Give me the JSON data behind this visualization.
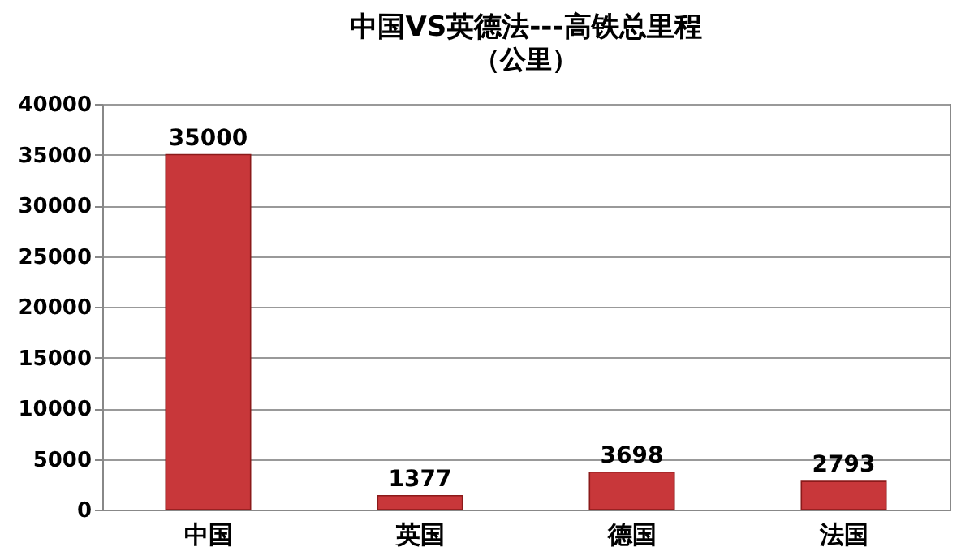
{
  "chart_data": {
    "type": "bar",
    "title": "中国VS英德法---高铁总里程",
    "subtitle": "（公里）",
    "categories": [
      "中国",
      "英国",
      "德国",
      "法国"
    ],
    "values": [
      35000,
      1377,
      3698,
      2793
    ],
    "color": "#c8373a",
    "ylim": [
      0,
      40000
    ],
    "yticks": [
      0,
      5000,
      10000,
      15000,
      20000,
      25000,
      30000,
      35000,
      40000
    ],
    "grid": "y",
    "data_labels": true
  }
}
